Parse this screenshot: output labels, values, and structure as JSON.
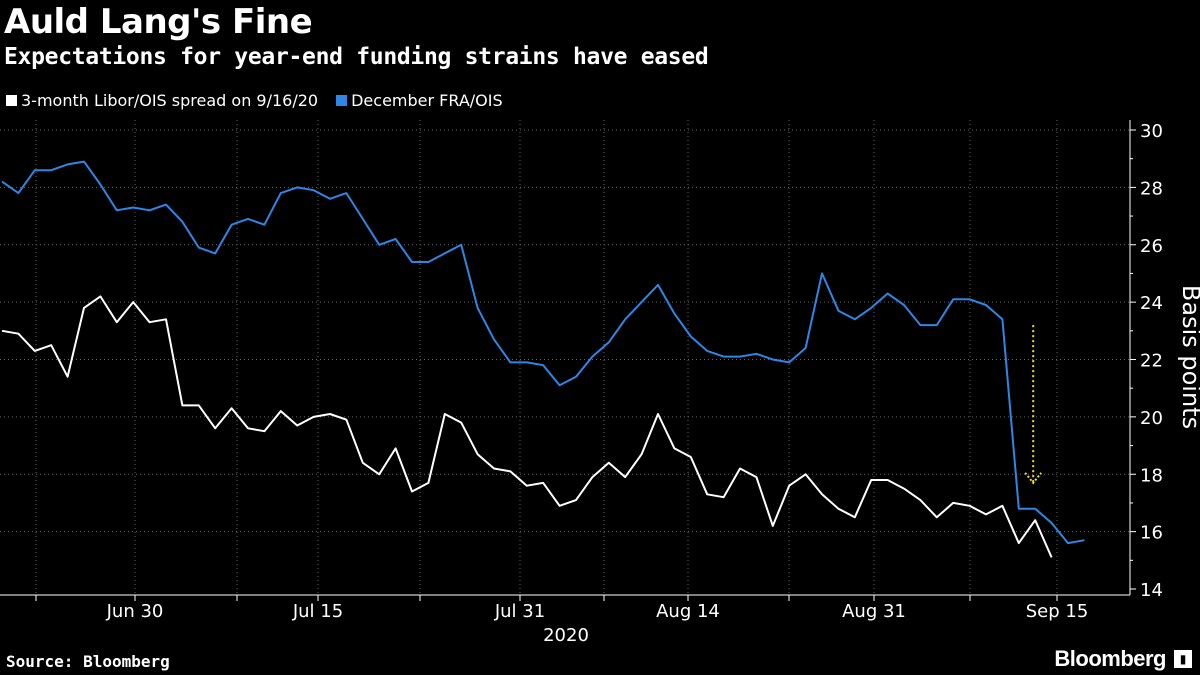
{
  "chart_data": {
    "type": "line",
    "title": "Auld Lang's Fine",
    "subtitle": "Expectations for year-end funding strains have eased",
    "ylabel": "Basis points",
    "xlabel_year": "2020",
    "ylim": [
      14,
      30
    ],
    "yticks": [
      14,
      16,
      18,
      20,
      22,
      24,
      26,
      28,
      30
    ],
    "xticks": [
      "Jun 30",
      "Jul 15",
      "Jul 31",
      "Aug 14",
      "Aug 31",
      "Sep 15"
    ],
    "axis_side": "right",
    "grid": true,
    "legend_placement": "top-left",
    "series": [
      {
        "name": "3-month Libor/OIS spread on 9/16/20",
        "color": "#ffffff",
        "values": [
          23.0,
          22.9,
          22.3,
          22.5,
          21.4,
          23.8,
          24.2,
          23.3,
          24.0,
          23.3,
          23.4,
          20.4,
          20.4,
          19.6,
          20.3,
          19.6,
          19.5,
          20.2,
          19.7,
          20.0,
          20.1,
          19.9,
          18.4,
          18.0,
          18.9,
          17.4,
          17.7,
          20.1,
          19.8,
          18.7,
          18.2,
          18.1,
          17.6,
          17.7,
          16.9,
          17.1,
          17.9,
          18.4,
          17.9,
          18.7,
          20.1,
          18.9,
          18.6,
          17.3,
          17.2,
          18.2,
          17.9,
          16.2,
          17.6,
          18.0,
          17.3,
          16.8,
          16.5,
          17.8,
          17.8,
          17.5,
          17.1,
          16.5,
          17.0,
          16.9,
          16.6,
          16.9,
          15.6,
          16.4,
          15.1
        ]
      },
      {
        "name": "December FRA/OIS",
        "color": "#2e86e6",
        "values": [
          28.2,
          27.8,
          28.6,
          28.6,
          28.8,
          28.9,
          28.1,
          27.2,
          27.3,
          27.2,
          27.4,
          26.8,
          25.9,
          25.7,
          26.7,
          26.9,
          26.7,
          27.8,
          28.0,
          27.9,
          27.6,
          27.8,
          26.9,
          26.0,
          26.2,
          25.4,
          25.4,
          25.7,
          26.0,
          23.8,
          22.7,
          21.9,
          21.9,
          21.8,
          21.1,
          21.4,
          22.1,
          22.6,
          23.4,
          24.0,
          24.6,
          23.6,
          22.8,
          22.3,
          22.1,
          22.1,
          22.2,
          22.0,
          21.9,
          22.4,
          25.0,
          23.7,
          23.4,
          23.8,
          24.3,
          23.9,
          23.2,
          23.2,
          24.1,
          24.1,
          23.9,
          23.4,
          16.8,
          16.8,
          16.3,
          15.6,
          15.7
        ]
      }
    ],
    "annotation": {
      "type": "arrow",
      "color": "#f2e600",
      "from_value": 23.2,
      "to_value": 17.7,
      "at_index": 63
    }
  },
  "footer": {
    "source": "Source: Bloomberg",
    "brand": "Bloomberg"
  }
}
